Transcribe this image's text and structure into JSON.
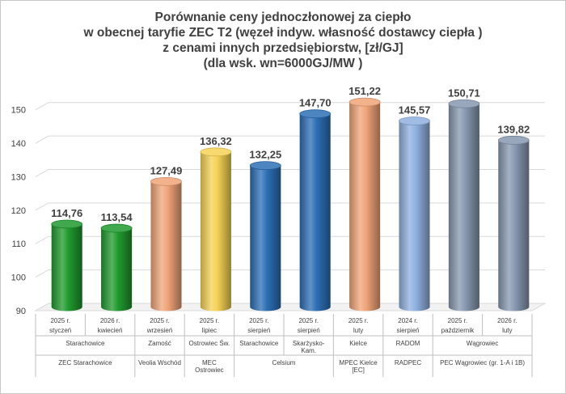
{
  "chart_data": {
    "type": "bar",
    "title": [
      "Porównanie ceny jednoczłonowej za ciepło",
      "w obecnej taryfie ZEC T2 (węzeł indyw. własność dostawcy ciepła )",
      "z cenami innych przedsiębiorstw, [zł/GJ]",
      "(dla wsk. wn=6000GJ/MW )"
    ],
    "ylim": [
      90,
      155
    ],
    "yticks": [
      90,
      100,
      110,
      120,
      130,
      140,
      150
    ],
    "grid": true,
    "values": [
      114.76,
      113.54,
      127.49,
      136.32,
      132.25,
      147.7,
      151.22,
      145.57,
      150.71,
      139.82
    ],
    "value_labels": [
      "114,76",
      "113,54",
      "127,49",
      "136,32",
      "132,25",
      "147,70",
      "151,22",
      "145,57",
      "150,71",
      "139,82"
    ],
    "bar_colors": [
      "#1f9a2e",
      "#1f9a2e",
      "#f0a478",
      "#f5d255",
      "#2c6fb5",
      "#2c6fb5",
      "#f0a478",
      "#8fb0e0",
      "#8698b0",
      "#8698b0"
    ],
    "categories": [
      {
        "year": "2025 r.",
        "month": "styczeń"
      },
      {
        "year": "2026 r.",
        "month": "kwiecień"
      },
      {
        "year": "2025 r.",
        "month": "wrzesień"
      },
      {
        "year": "2025 r.",
        "month": "lipiec"
      },
      {
        "year": "2025 r.",
        "month": "sierpień"
      },
      {
        "year": "2025 r.",
        "month": "sierpień"
      },
      {
        "year": "2025 r.",
        "month": "luty"
      },
      {
        "year": "2024 r.",
        "month": "sierpień"
      },
      {
        "year": "2025 r.",
        "month": "październik"
      },
      {
        "year": "2026 r.",
        "month": "luty"
      }
    ],
    "locations": [
      {
        "label": [
          "Starachowice"
        ],
        "from": 0,
        "to": 1
      },
      {
        "label": [
          "Zamość"
        ],
        "from": 2,
        "to": 2
      },
      {
        "label": [
          "Ostrowiec Św."
        ],
        "from": 3,
        "to": 3
      },
      {
        "label": [
          "Starachowice"
        ],
        "from": 4,
        "to": 4
      },
      {
        "label": [
          "Skarżysko-",
          "Kam."
        ],
        "from": 5,
        "to": 5
      },
      {
        "label": [
          "Kielce"
        ],
        "from": 6,
        "to": 6
      },
      {
        "label": [
          "RADOM"
        ],
        "from": 7,
        "to": 7
      },
      {
        "label": [
          "Wągrowiec"
        ],
        "from": 8,
        "to": 9
      }
    ],
    "companies": [
      {
        "label": [
          "ZEC Starachowice"
        ],
        "from": 0,
        "to": 1
      },
      {
        "label": [
          "Veolia Wschód"
        ],
        "from": 2,
        "to": 2
      },
      {
        "label": [
          "MEC",
          "Ostrowiec"
        ],
        "from": 3,
        "to": 3
      },
      {
        "label": [
          "Celsium"
        ],
        "from": 4,
        "to": 5
      },
      {
        "label": [
          "MPEC Kielce",
          "[EC]"
        ],
        "from": 6,
        "to": 6
      },
      {
        "label": [
          "RADPEC"
        ],
        "from": 7,
        "to": 7
      },
      {
        "label": [
          "PEC Wągrowiec (gr. 1-A i 1B)"
        ],
        "from": 8,
        "to": 9
      }
    ]
  }
}
